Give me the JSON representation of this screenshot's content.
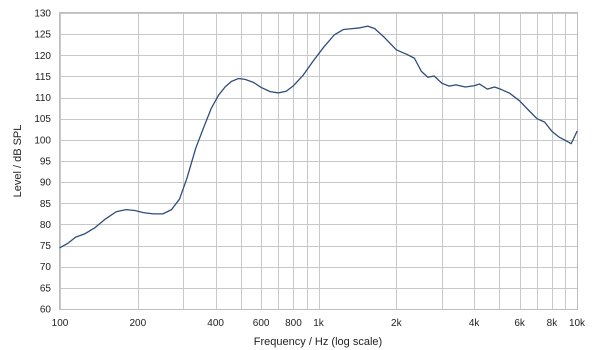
{
  "chart_data": {
    "type": "line",
    "title": "",
    "xlabel": "Frequency / Hz (log scale)",
    "ylabel": "Level / dB SPL",
    "x_scale": "log",
    "xlim": [
      100,
      10000
    ],
    "ylim": [
      60,
      130
    ],
    "grid": true,
    "legend": "none",
    "line_color": "#2e4d7a",
    "grid_color": "#c8c8c8",
    "x_ticks": [
      {
        "value": 100,
        "label": "100"
      },
      {
        "value": 200,
        "label": "200"
      },
      {
        "value": 400,
        "label": "400"
      },
      {
        "value": 600,
        "label": "600"
      },
      {
        "value": 800,
        "label": "800"
      },
      {
        "value": 1000,
        "label": "1k"
      },
      {
        "value": 2000,
        "label": "2k"
      },
      {
        "value": 4000,
        "label": "4k"
      },
      {
        "value": 6000,
        "label": "6k"
      },
      {
        "value": 8000,
        "label": "8k"
      },
      {
        "value": 10000,
        "label": "10k"
      }
    ],
    "y_ticks": [
      60,
      65,
      70,
      75,
      80,
      85,
      90,
      95,
      100,
      105,
      110,
      115,
      120,
      125,
      130
    ],
    "series": [
      {
        "x": [
          100,
          107,
          115,
          125,
          137,
          150,
          165,
          180,
          195,
          210,
          230,
          250,
          270,
          290,
          310,
          335,
          360,
          385,
          410,
          435,
          460,
          490,
          520,
          560,
          600,
          650,
          700,
          750,
          800,
          870,
          950,
          1050,
          1150,
          1250,
          1350,
          1450,
          1550,
          1650,
          1800,
          2000,
          2200,
          2350,
          2500,
          2650,
          2800,
          3000,
          3200,
          3400,
          3700,
          4000,
          4200,
          4500,
          4800,
          5100,
          5500,
          6000,
          6500,
          7000,
          7500,
          8000,
          8500,
          9000,
          9500,
          10000
        ],
        "y": [
          74.5,
          75.5,
          77,
          77.8,
          79.3,
          81.3,
          83,
          83.5,
          83.3,
          82.8,
          82.5,
          82.5,
          83.5,
          86,
          91,
          98,
          103,
          107.5,
          110.5,
          112.5,
          113.8,
          114.5,
          114.3,
          113.6,
          112.4,
          111.4,
          111.1,
          111.5,
          112.8,
          115.2,
          118.5,
          122,
          124.8,
          126.1,
          126.3,
          126.5,
          126.9,
          126.3,
          124.2,
          121.3,
          120.2,
          119.3,
          116.2,
          114.8,
          115.1,
          113.4,
          112.7,
          113.0,
          112.5,
          112.8,
          113.2,
          112.0,
          112.5,
          111.9,
          111.0,
          109.2,
          107.0,
          105.0,
          104.2,
          102.0,
          100.7,
          99.9,
          99.1,
          102.0
        ]
      }
    ]
  }
}
